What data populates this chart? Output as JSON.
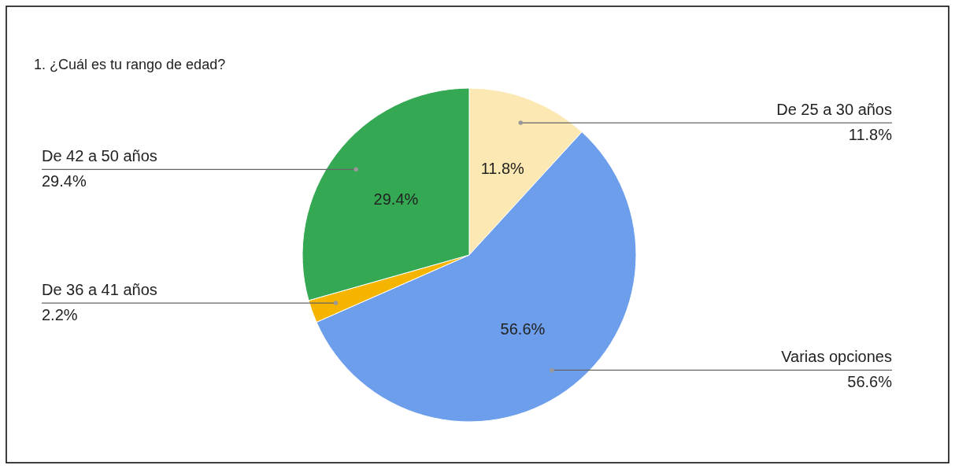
{
  "chart_data": {
    "type": "pie",
    "title": "1. ¿Cuál es tu rango de edad?",
    "categories": [
      "De 25 a 30 años",
      "Varias opciones",
      "De 36 a 41 años",
      "De 42 a 50 años"
    ],
    "values": [
      11.8,
      56.6,
      2.2,
      29.4
    ],
    "colors": [
      "#fce8b2",
      "#6d9eeb",
      "#f4b400",
      "#34a853"
    ],
    "value_labels": [
      "11.8%",
      "56.6%",
      "2.2%",
      "29.4%"
    ]
  }
}
